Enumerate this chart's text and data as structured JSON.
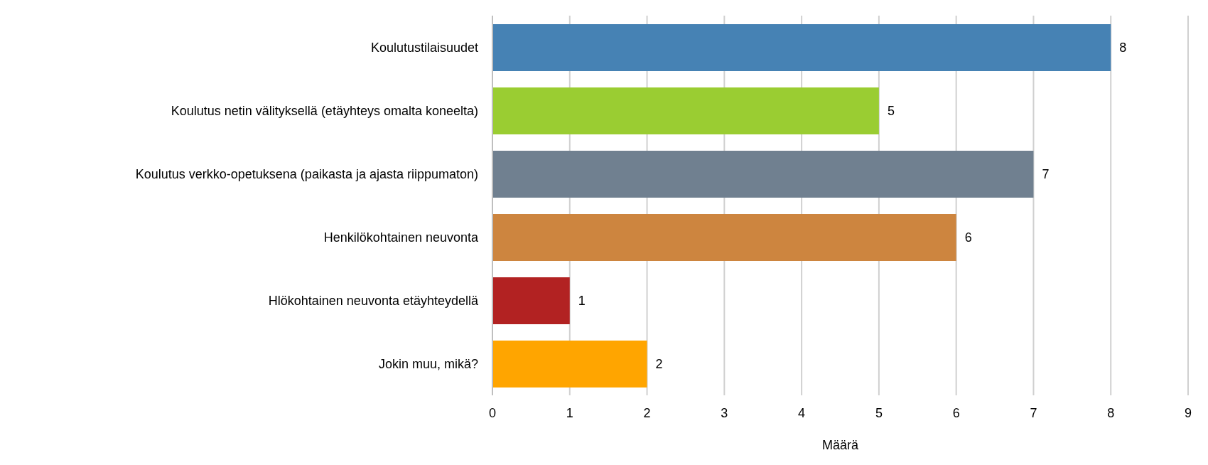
{
  "chart_data": {
    "type": "bar",
    "orientation": "horizontal",
    "xlabel": "Määrä",
    "categories": [
      "Koulutustilaisuudet",
      "Koulutus netin välityksellä (etäyhteys omalta koneelta)",
      "Koulutus verkko-opetuksena (paikasta ja ajasta riippumaton)",
      "Henkilökohtainen neuvonta",
      "Hlökohtainen neuvonta etäyhteydellä",
      "Jokin muu, mikä?"
    ],
    "values": [
      8,
      5,
      7,
      6,
      1,
      2
    ],
    "colors": [
      "#4682b4",
      "#9acd32",
      "#708090",
      "#cd853f",
      "#b22222",
      "#ffa500"
    ],
    "xlim": [
      0,
      9
    ],
    "xticks": [
      0,
      1,
      2,
      3,
      4,
      5,
      6,
      7,
      8,
      9
    ],
    "grid": "x",
    "data_labels": true
  }
}
